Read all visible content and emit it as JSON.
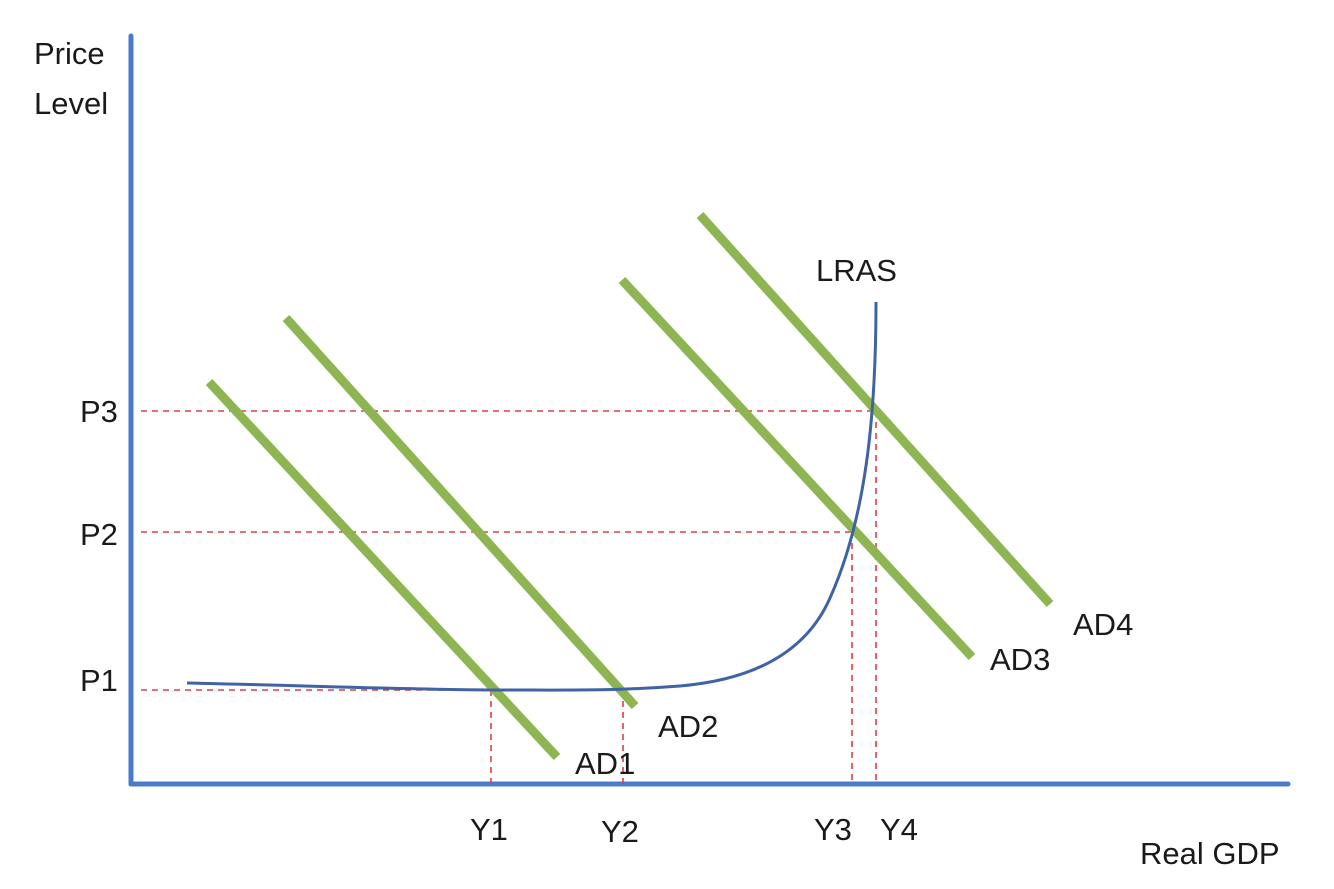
{
  "chart_data": {
    "type": "line",
    "title": "",
    "xlabel": "Real GDP",
    "ylabel_lines": [
      "Price",
      "Level"
    ],
    "x_ticks": [
      "Y1",
      "Y2",
      "Y3",
      "Y4"
    ],
    "y_ticks": [
      "P1",
      "P2",
      "P3"
    ],
    "supply_curve": {
      "name": "LRAS"
    },
    "demand_curves": [
      {
        "name": "AD1"
      },
      {
        "name": "AD2"
      },
      {
        "name": "AD3"
      },
      {
        "name": "AD4"
      }
    ],
    "equilibria": [
      {
        "curve": "AD1",
        "x": "Y1",
        "y": "P1"
      },
      {
        "curve": "AD2",
        "x": "Y2",
        "y": "P1"
      },
      {
        "curve": "AD3",
        "x": "Y3",
        "y": "P2"
      },
      {
        "curve": "AD4",
        "x": "Y4",
        "y": "P3"
      }
    ],
    "grid": false,
    "colors": {
      "axes": "#4a7bc8",
      "supply_curve": "#3f63a3",
      "demand_curves": "#8db552",
      "guide_lines": "#d9414a"
    }
  }
}
